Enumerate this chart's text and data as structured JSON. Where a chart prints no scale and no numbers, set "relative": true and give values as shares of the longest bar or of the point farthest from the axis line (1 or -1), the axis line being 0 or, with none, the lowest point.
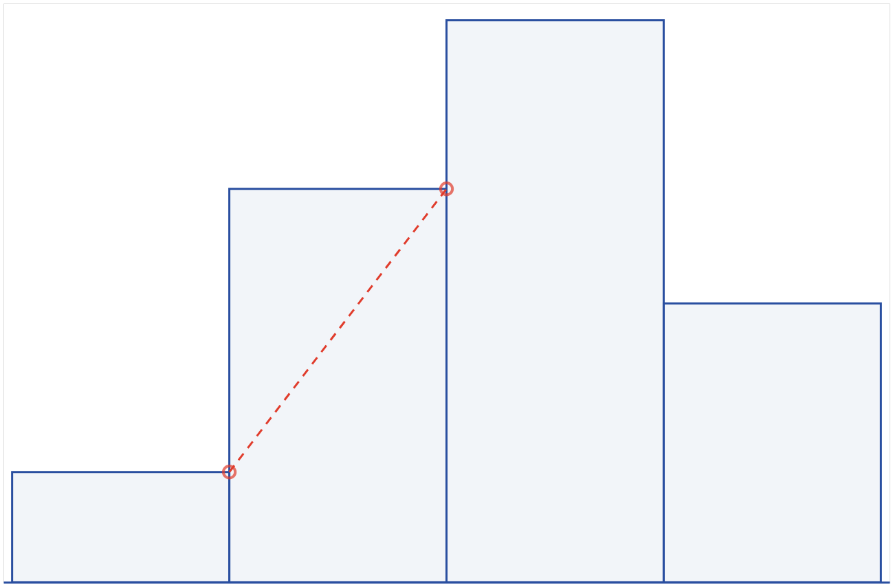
{
  "chart_data": {
    "type": "bar",
    "relative": true,
    "tick_labels": false,
    "grid": false,
    "categories": [
      null,
      null,
      null,
      null
    ],
    "values": [
      0.196,
      0.7,
      1,
      0.496
    ],
    "color": "#2a4fa0"
  }
}
